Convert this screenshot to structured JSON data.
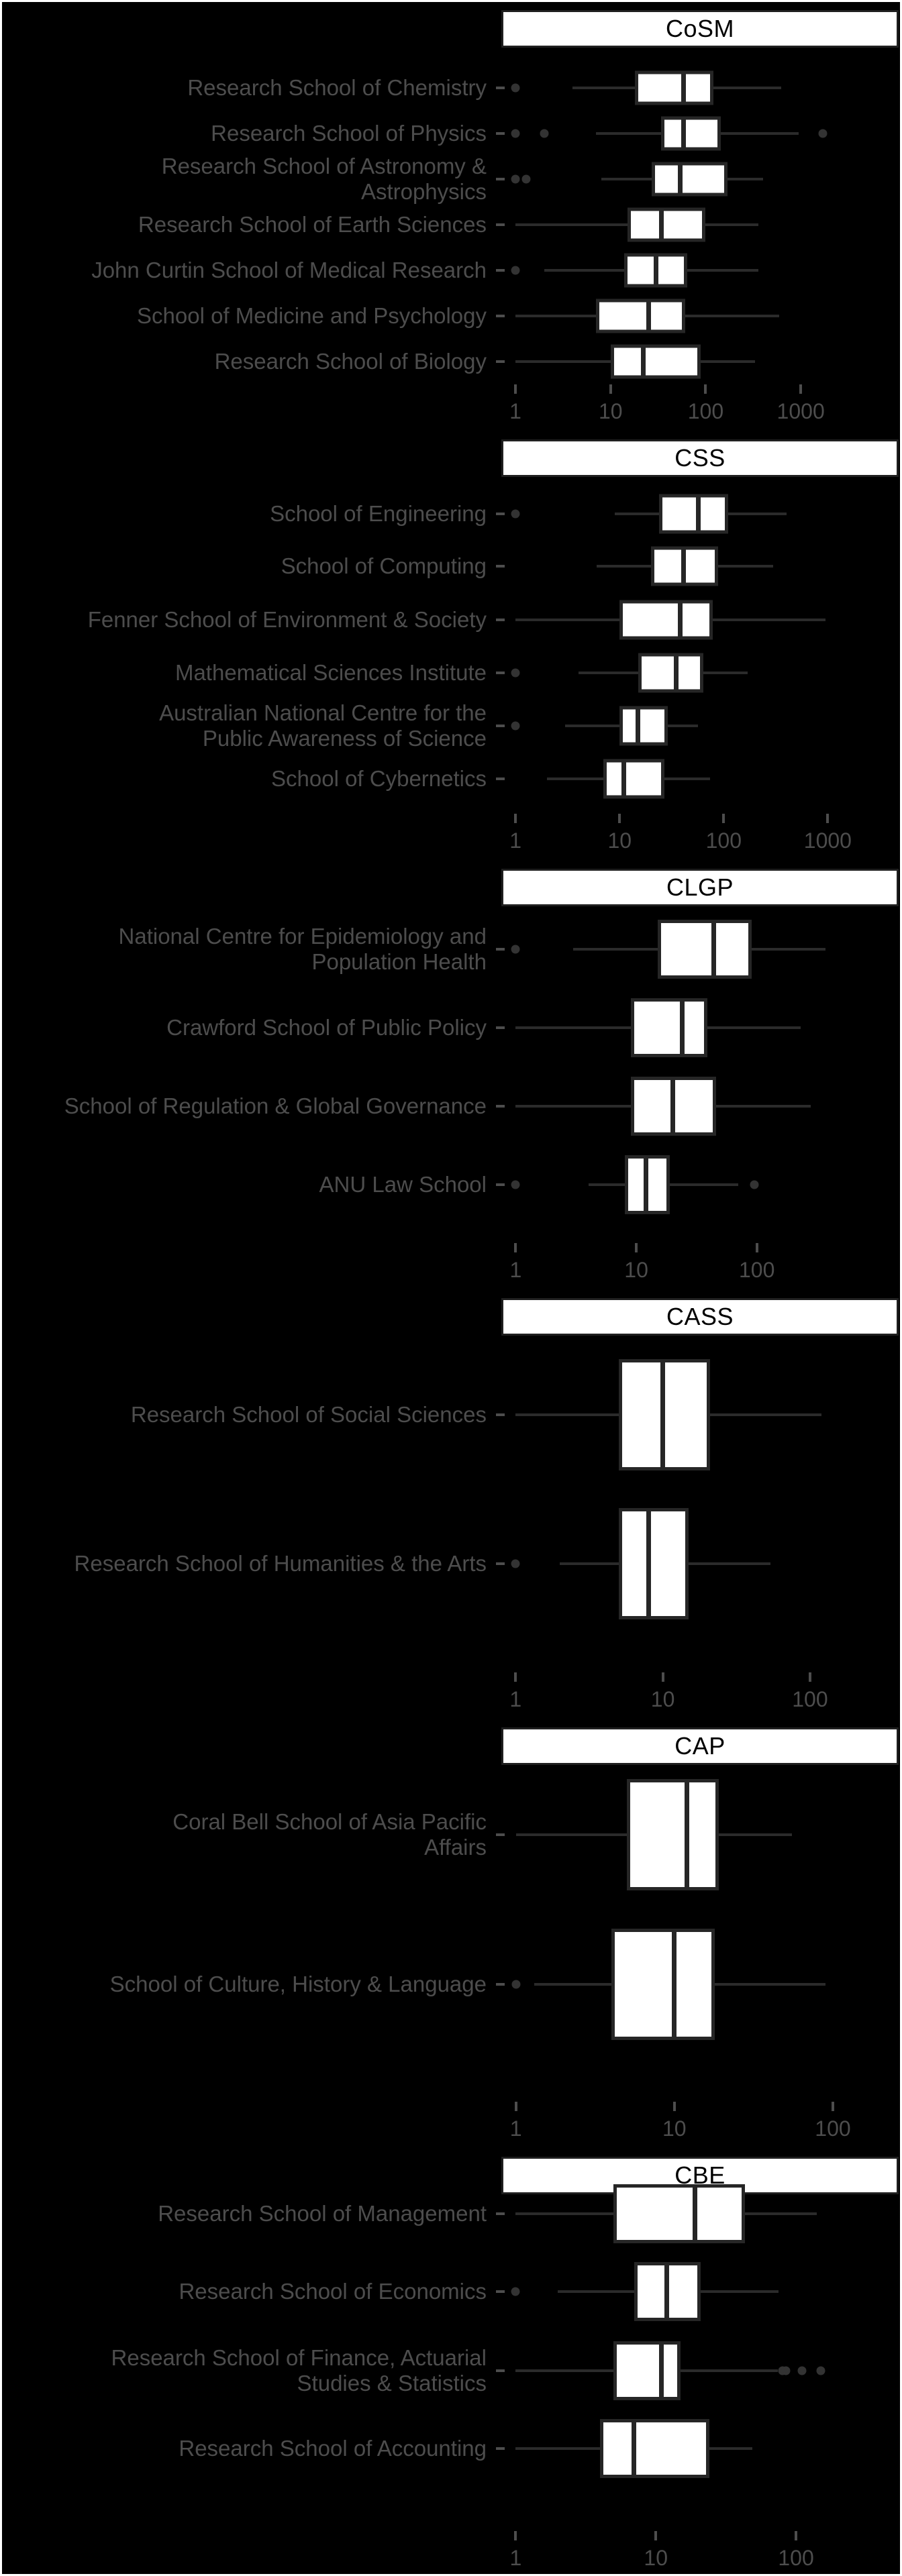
{
  "chart_data": {
    "type": "boxplot",
    "orientation": "horizontal",
    "x_scale": "log10",
    "title": "",
    "xlabel": "",
    "ylabel": "",
    "grid": false,
    "legend": "none",
    "colors": {
      "background": "#000000",
      "strip_background": "#ffffff",
      "strip_border": "#1f1f1f",
      "strip_text": "#000000",
      "label_text": "#4d4d4d",
      "axis_text": "#4d4d4d",
      "box_fill": "#ffffff",
      "box_border": "#262626",
      "whisker": "#2b2b2b",
      "outlier": "#333333"
    },
    "facets": [
      {
        "title": "CoSM",
        "axis_ticks": [
          "1",
          "10",
          "100",
          "1000"
        ],
        "tick_values": [
          1,
          10,
          100,
          1000
        ],
        "domain": [
          0.71,
          10700
        ],
        "rows": [
          {
            "label": "Research School of Chemistry",
            "whisker_low": 4,
            "q1": 18,
            "median": 59,
            "q3": 120,
            "whisker_high": 620,
            "outliers": [
              1
            ]
          },
          {
            "label": "Research School of Physics",
            "whisker_low": 7,
            "q1": 34,
            "median": 59,
            "q3": 145,
            "whisker_high": 950,
            "outliers": [
              1,
              2,
              1700
            ]
          },
          {
            "label": "Research School of Astronomy &\nAstrophysics",
            "whisker_low": 8,
            "q1": 27,
            "median": 54,
            "q3": 170,
            "whisker_high": 400,
            "outliers": [
              1,
              1.3
            ]
          },
          {
            "label": "Research School of Earth Sciences",
            "whisker_low": 1,
            "q1": 15,
            "median": 34,
            "q3": 100,
            "whisker_high": 360,
            "outliers": []
          },
          {
            "label": "John Curtin School of Medical Research",
            "whisker_low": 2,
            "q1": 14,
            "median": 30,
            "q3": 64,
            "whisker_high": 360,
            "outliers": [
              1
            ]
          },
          {
            "label": "School of Medicine and Psychology",
            "whisker_low": 1,
            "q1": 7,
            "median": 25,
            "q3": 61,
            "whisker_high": 590,
            "outliers": []
          },
          {
            "label": "Research School of Biology",
            "whisker_low": 1,
            "q1": 10,
            "median": 22,
            "q3": 88,
            "whisker_high": 330,
            "outliers": []
          }
        ]
      },
      {
        "title": "CSS",
        "axis_ticks": [
          "1",
          "10",
          "100",
          "1000"
        ],
        "tick_values": [
          1,
          10,
          100,
          1000
        ],
        "domain": [
          0.73,
          4800
        ],
        "rows": [
          {
            "label": "School of Engineering",
            "whisker_low": 9,
            "q1": 24,
            "median": 57,
            "q3": 110,
            "whisker_high": 400,
            "outliers": [
              1
            ]
          },
          {
            "label": "School of Computing",
            "whisker_low": 6,
            "q1": 20,
            "median": 41,
            "q3": 88,
            "whisker_high": 300,
            "outliers": []
          },
          {
            "label": "Fenner School of Environment & Society",
            "whisker_low": 1,
            "q1": 10,
            "median": 38,
            "q3": 79,
            "whisker_high": 950,
            "outliers": []
          },
          {
            "label": "Mathematical Sciences Institute",
            "whisker_low": 4,
            "q1": 15,
            "median": 35,
            "q3": 64,
            "whisker_high": 170,
            "outliers": [
              1
            ]
          },
          {
            "label": "Australian National Centre for the\nPublic Awareness of Science",
            "whisker_low": 3,
            "q1": 10,
            "median": 15,
            "q3": 29,
            "whisker_high": 57,
            "outliers": [
              1
            ]
          },
          {
            "label": "School of Cybernetics",
            "whisker_low": 2,
            "q1": 7,
            "median": 11,
            "q3": 27,
            "whisker_high": 74,
            "outliers": []
          }
        ]
      },
      {
        "title": "CLGP",
        "axis_ticks": [
          "1",
          "10",
          "100"
        ],
        "tick_values": [
          1,
          10,
          100
        ],
        "domain": [
          0.76,
          1500
        ],
        "rows": [
          {
            "label": "National Centre for Epidemiology and\nPopulation Health",
            "whisker_low": 3,
            "q1": 15,
            "median": 44,
            "q3": 91,
            "whisker_high": 370,
            "outliers": [
              1
            ]
          },
          {
            "label": "Crawford School of Public Policy",
            "whisker_low": 1,
            "q1": 9,
            "median": 24,
            "q3": 39,
            "whisker_high": 230,
            "outliers": []
          },
          {
            "label": "School of Regulation & Global Governance",
            "whisker_low": 1,
            "q1": 9,
            "median": 20,
            "q3": 46,
            "whisker_high": 280,
            "outliers": []
          },
          {
            "label": "ANU Law School",
            "whisker_low": 4,
            "q1": 8,
            "median": 12,
            "q3": 19,
            "whisker_high": 70,
            "outliers": [
              1,
              95
            ]
          }
        ]
      },
      {
        "title": "CASS",
        "axis_ticks": [
          "1",
          "10",
          "100"
        ],
        "tick_values": [
          1,
          10,
          100
        ],
        "domain": [
          0.8,
          400
        ],
        "rows": [
          {
            "label": "Research School of Social Sciences",
            "whisker_low": 1,
            "q1": 5,
            "median": 10,
            "q3": 21,
            "whisker_high": 120,
            "outliers": []
          },
          {
            "label": "Research School of Humanities & the Arts",
            "whisker_low": 2,
            "q1": 5,
            "median": 8,
            "q3": 15,
            "whisker_high": 54,
            "outliers": [
              1
            ]
          }
        ]
      },
      {
        "title": "CAP",
        "axis_ticks": [
          "1",
          "10",
          "100"
        ],
        "tick_values": [
          1,
          10,
          100
        ],
        "domain": [
          0.81,
          260
        ],
        "rows": [
          {
            "label": "Coral Bell School of Asia Pacific\nAffairs",
            "whisker_low": 1,
            "q1": 5,
            "median": 12,
            "q3": 19,
            "whisker_high": 55,
            "outliers": []
          },
          {
            "label": "School of Culture, History & Language",
            "whisker_low": 1.3,
            "q1": 4,
            "median": 10,
            "q3": 18,
            "whisker_high": 90,
            "outliers": [
              1
            ]
          }
        ]
      },
      {
        "title": "CBE",
        "axis_ticks": [
          "1",
          "10",
          "100"
        ],
        "tick_values": [
          1,
          10,
          100
        ],
        "domain": [
          0.79,
          540
        ],
        "rows": [
          {
            "label": "Research School of Management",
            "whisker_low": 1,
            "q1": 5,
            "median": 19,
            "q3": 43,
            "whisker_high": 140,
            "outliers": []
          },
          {
            "label": "Research School of Economics",
            "whisker_low": 2,
            "q1": 7,
            "median": 12,
            "q3": 21,
            "whisker_high": 75,
            "outliers": [
              1
            ]
          },
          {
            "label": "Research School of Finance, Actuarial\nStudies & Statistics",
            "whisker_low": 1,
            "q1": 5,
            "median": 11,
            "q3": 15,
            "whisker_high": 74,
            "outliers": [
              80,
              85,
              110,
              150
            ]
          },
          {
            "label": "Research School of Accounting",
            "whisker_low": 1,
            "q1": 4,
            "median": 7,
            "q3": 24,
            "whisker_high": 49,
            "outliers": []
          }
        ]
      }
    ]
  }
}
